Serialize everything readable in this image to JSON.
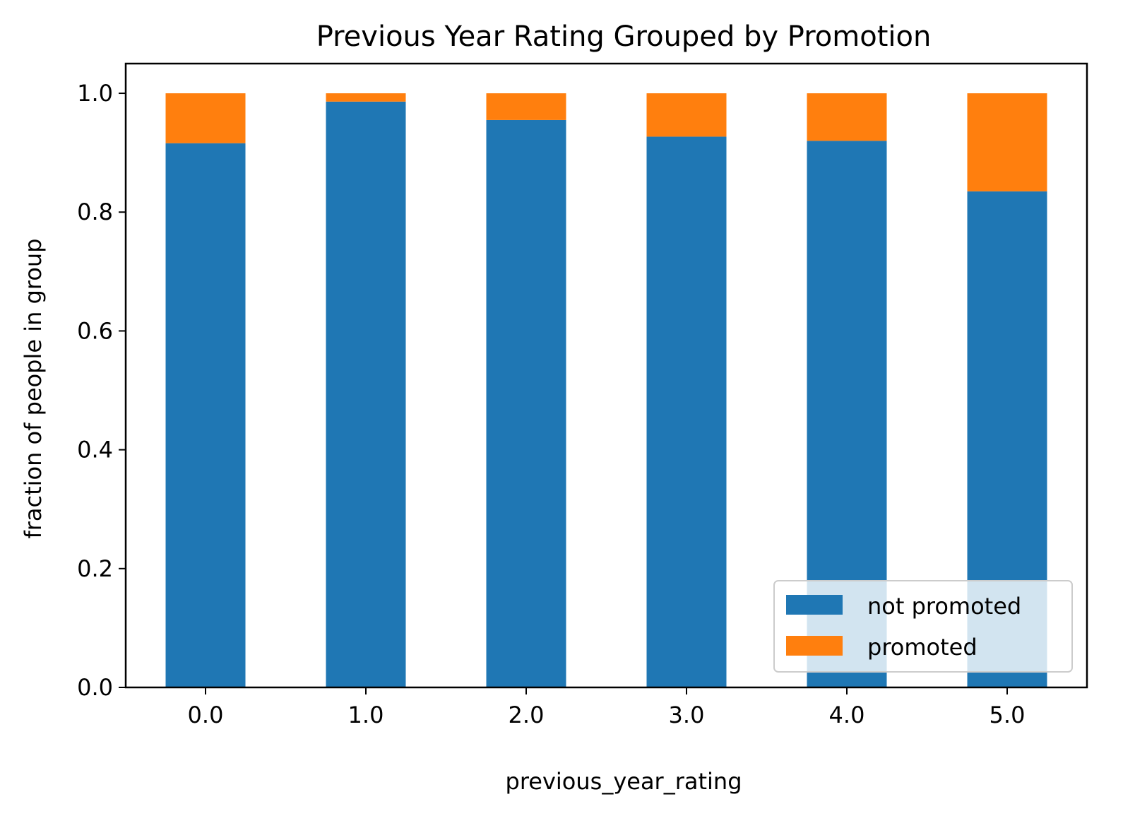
{
  "chart_data": {
    "type": "bar",
    "stacked": true,
    "title": "Previous Year Rating Grouped by Promotion",
    "xlabel": "previous_year_rating",
    "ylabel": "fraction of people in group",
    "categories": [
      "0.0",
      "1.0",
      "2.0",
      "3.0",
      "4.0",
      "5.0"
    ],
    "series": [
      {
        "name": "not promoted",
        "color": "#1f77b4",
        "values": [
          0.916,
          0.986,
          0.955,
          0.927,
          0.92,
          0.835
        ]
      },
      {
        "name": "promoted",
        "color": "#ff7f0e",
        "values": [
          0.084,
          0.014,
          0.045,
          0.073,
          0.08,
          0.165
        ]
      }
    ],
    "ylim": [
      0,
      1.05
    ],
    "yticks": [
      "0.0",
      "0.2",
      "0.4",
      "0.6",
      "0.8",
      "1.0"
    ],
    "grid": false,
    "legend_position": "lower right"
  }
}
